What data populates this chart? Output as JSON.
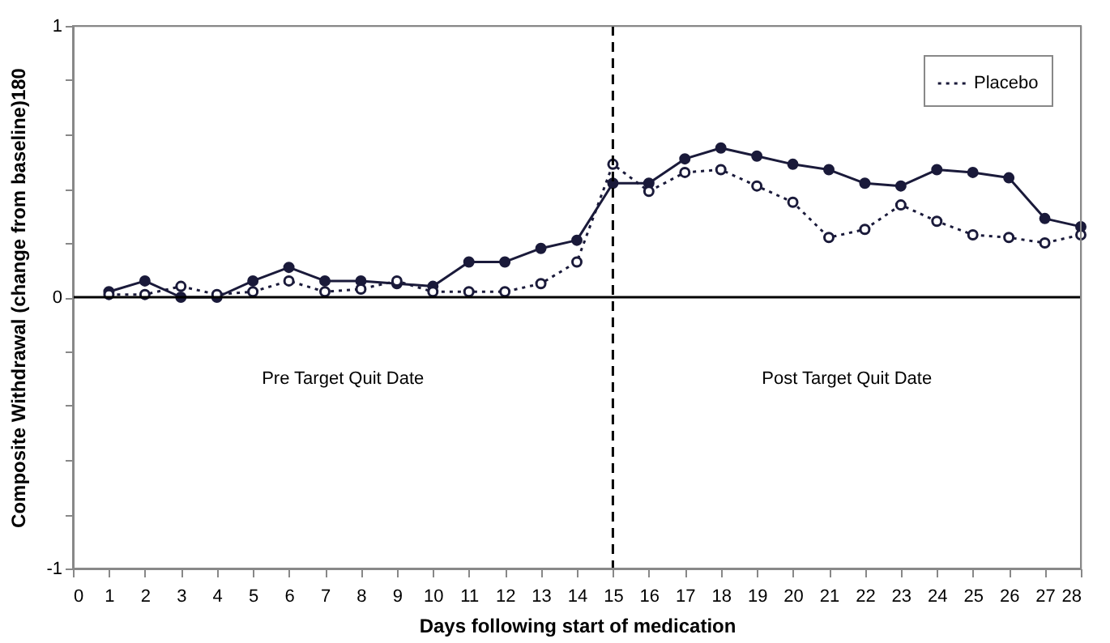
{
  "chart_data": {
    "type": "line",
    "xlabel": "Days following start of medication",
    "ylabel": "Composite Withdrawal (change from baseline)180",
    "x": [
      1,
      2,
      3,
      4,
      5,
      6,
      7,
      8,
      9,
      10,
      11,
      12,
      13,
      14,
      15,
      16,
      17,
      18,
      19,
      20,
      21,
      22,
      23,
      24,
      25,
      26,
      27,
      28
    ],
    "series": [
      {
        "color": "#1a1a3a",
        "line_style": "solid",
        "marker": "circle",
        "values": [
          0.02,
          0.06,
          0.0,
          0.0,
          0.06,
          0.11,
          0.06,
          0.06,
          0.05,
          0.04,
          0.13,
          0.13,
          0.18,
          0.21,
          0.42,
          0.42,
          0.51,
          0.55,
          0.52,
          0.49,
          0.47,
          0.42,
          0.41,
          0.47,
          0.46,
          0.44,
          0.29,
          0.26
        ]
      },
      {
        "name": "Placebo",
        "color": "#1a1a3a",
        "line_style": "dotted",
        "marker": "circle",
        "values": [
          0.01,
          0.01,
          0.04,
          0.01,
          0.02,
          0.06,
          0.02,
          0.03,
          0.06,
          0.02,
          0.02,
          0.02,
          0.05,
          0.13,
          0.49,
          0.39,
          0.46,
          0.47,
          0.41,
          0.35,
          0.22,
          0.25,
          0.34,
          0.28,
          0.23,
          0.22,
          0.2,
          0.23
        ]
      }
    ],
    "xlim": [
      0,
      28
    ],
    "xticks": [
      0,
      1,
      2,
      3,
      4,
      5,
      6,
      7,
      8,
      9,
      10,
      11,
      12,
      13,
      14,
      15,
      16,
      17,
      18,
      19,
      20,
      21,
      22,
      23,
      24,
      25,
      26,
      27,
      28
    ],
    "ylim": [
      -1,
      1
    ],
    "yticks": [
      -1,
      {
        "value": -0.8,
        "label": null
      },
      {
        "value": -0.6,
        "label": null
      },
      {
        "value": -0.4,
        "label": null
      },
      {
        "value": -0.2,
        "label": null
      },
      0,
      {
        "value": 0.2,
        "label": null
      },
      {
        "value": 0.4,
        "label": null
      },
      {
        "value": 0.6,
        "label": null
      },
      {
        "value": 0.8,
        "label": null
      },
      1
    ],
    "ref_lines": [
      {
        "axis": "x",
        "value": 15,
        "line_style": "dashed",
        "color": "#000000"
      },
      {
        "axis": "y",
        "value": 0,
        "line_style": "solid",
        "color": "#000000"
      }
    ],
    "annotations": [
      "Pre Target Quit Date",
      "Post Target Quit Date"
    ],
    "grid": false,
    "legend": "top right"
  }
}
